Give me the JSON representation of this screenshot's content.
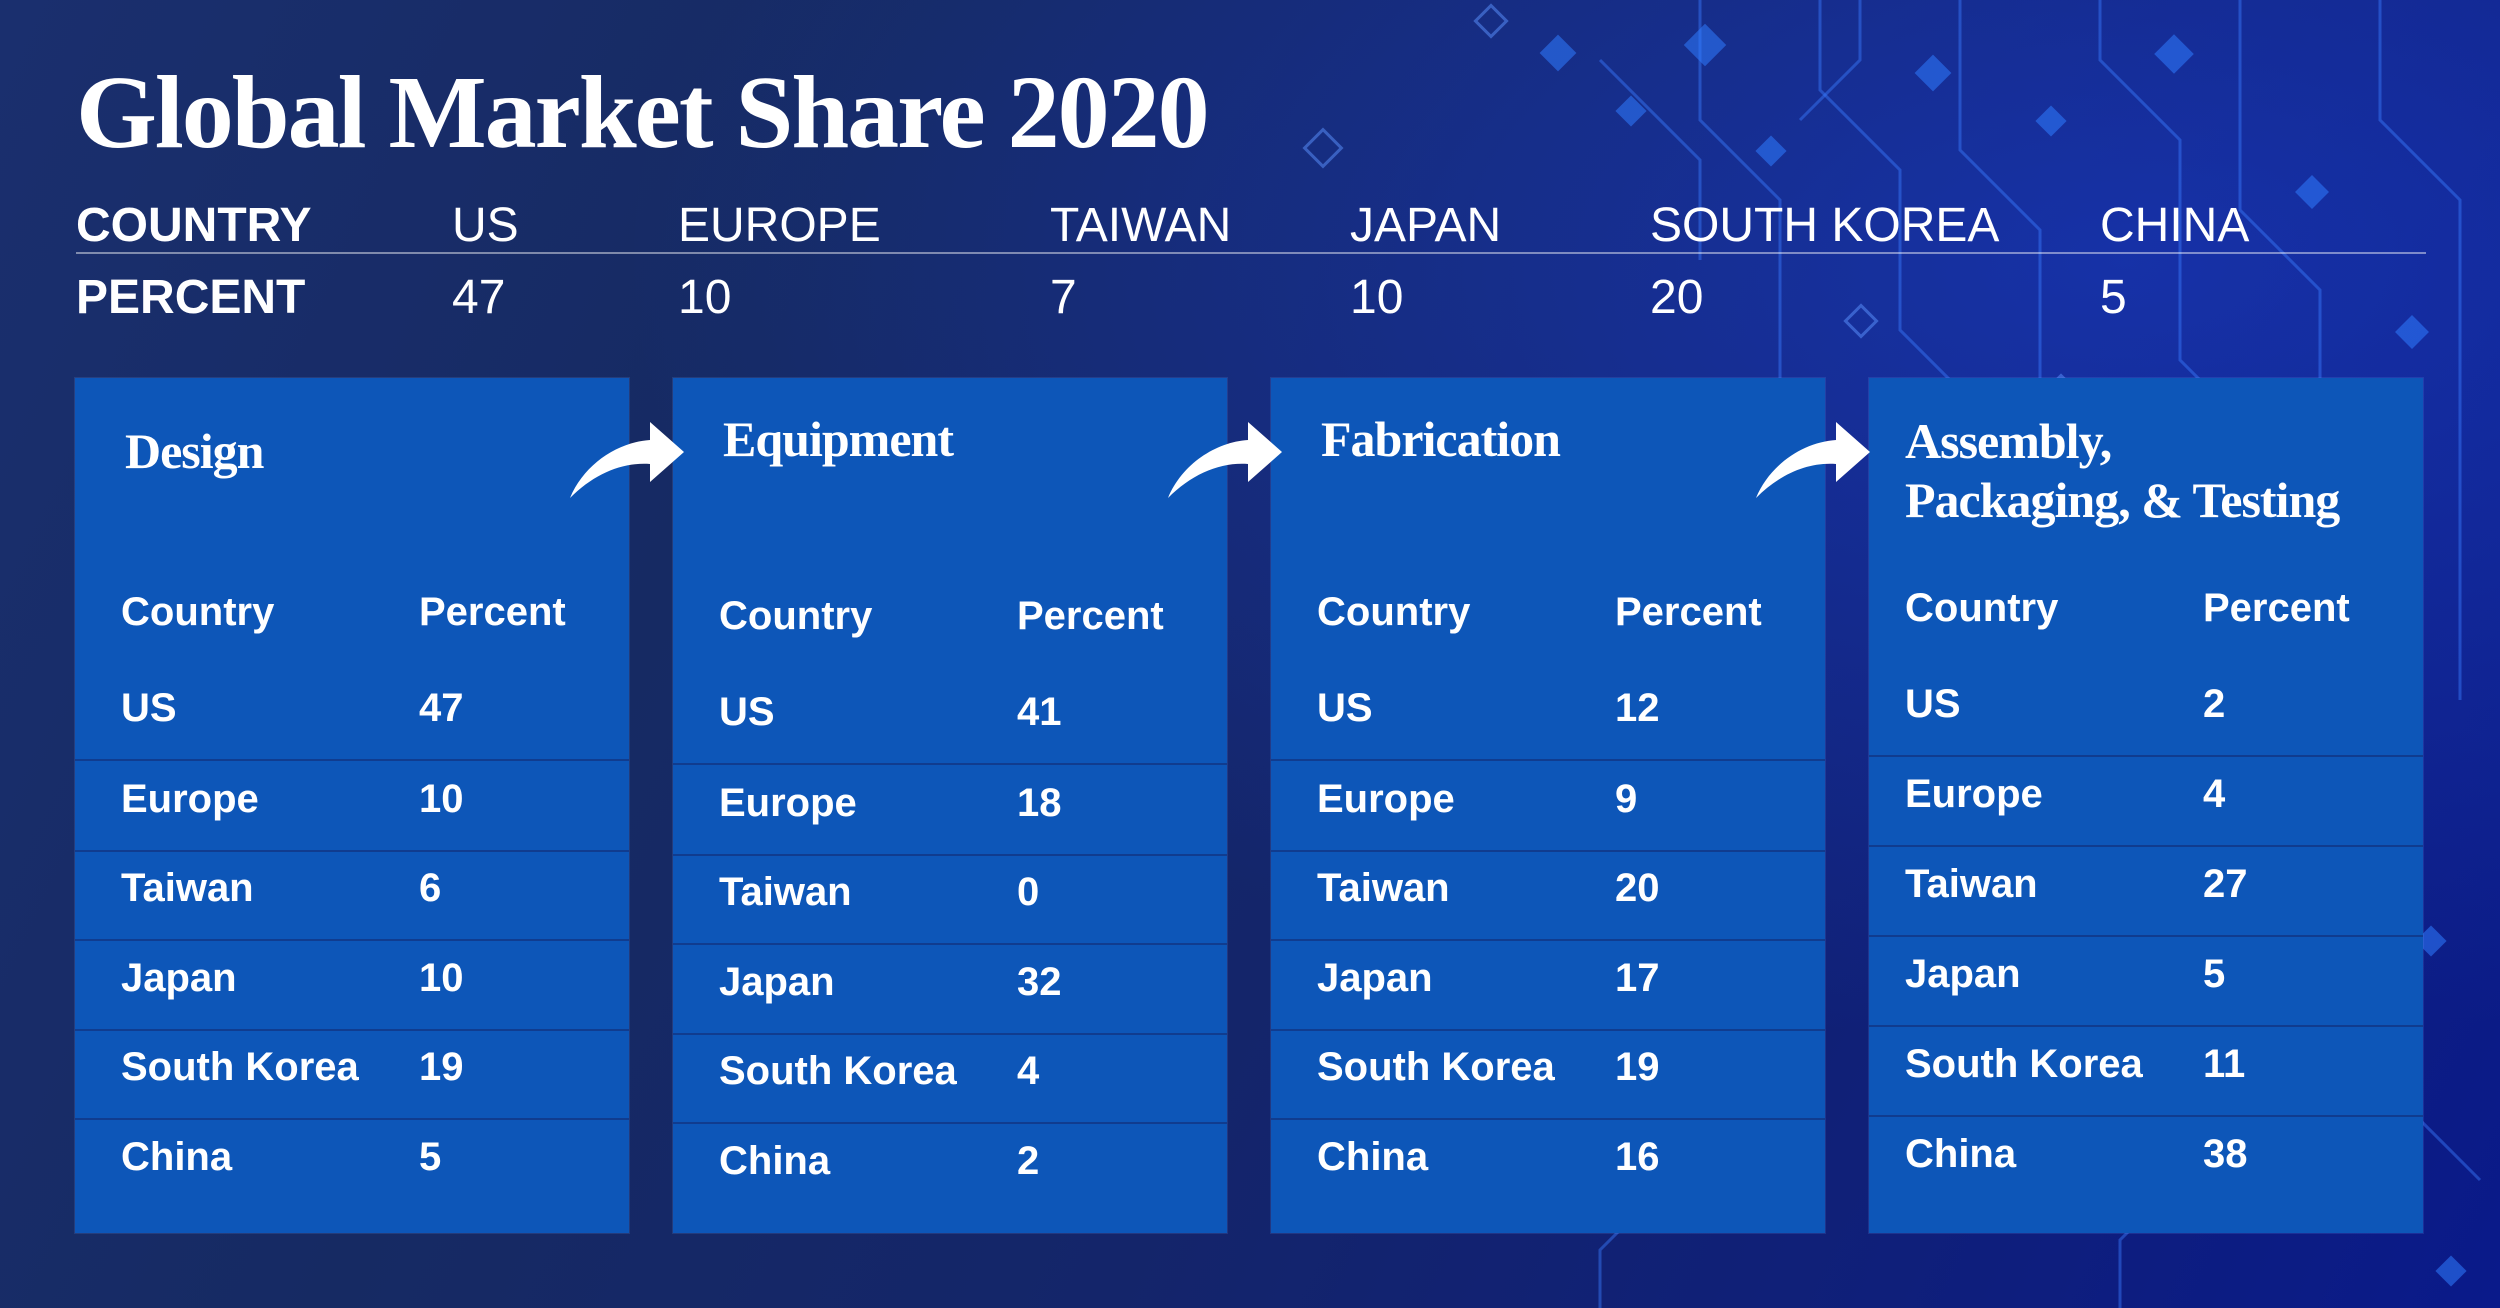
{
  "title": "Global Market Share 2020",
  "summary": {
    "country_label": "COUNTRY",
    "percent_label": "PERCENT",
    "countries": [
      "US",
      "EUROPE",
      "TAIWAN",
      "JAPAN",
      "SOUTH KOREA",
      "CHINA"
    ],
    "percents": [
      "47",
      "10",
      "7",
      "10",
      "20",
      "5"
    ]
  },
  "chart_data": [
    {
      "type": "table",
      "title": "Design",
      "columns": [
        "Country",
        "Percent"
      ],
      "rows": [
        [
          "US",
          47
        ],
        [
          "Europe",
          10
        ],
        [
          "Taiwan",
          6
        ],
        [
          "Japan",
          10
        ],
        [
          "South Korea",
          19
        ],
        [
          "China",
          5
        ]
      ]
    },
    {
      "type": "table",
      "title": "Equipment",
      "columns": [
        "Country",
        "Percent"
      ],
      "rows": [
        [
          "US",
          41
        ],
        [
          "Europe",
          18
        ],
        [
          "Taiwan",
          0
        ],
        [
          "Japan",
          32
        ],
        [
          "South Korea",
          4
        ],
        [
          "China",
          2
        ]
      ]
    },
    {
      "type": "table",
      "title": "Fabrication",
      "columns": [
        "Country",
        "Percent"
      ],
      "rows": [
        [
          "US",
          12
        ],
        [
          "Europe",
          9
        ],
        [
          "Taiwan",
          20
        ],
        [
          "Japan",
          17
        ],
        [
          "South Korea",
          19
        ],
        [
          "China",
          16
        ]
      ]
    },
    {
      "type": "table",
      "title": "Assembly, Packaging, & Testing",
      "title_lines": [
        "Assembly,",
        "Packaging, & Testing"
      ],
      "columns": [
        "Country",
        "Percent"
      ],
      "rows": [
        [
          "US",
          2
        ],
        [
          "Europe",
          4
        ],
        [
          "Taiwan",
          27
        ],
        [
          "Japan",
          5
        ],
        [
          "South Korea",
          11
        ],
        [
          "China",
          38
        ]
      ]
    }
  ],
  "colors": {
    "panel": "#0d56b8",
    "background": "#14256a",
    "text": "#ffffff",
    "accent": "#2f7bff"
  },
  "icons": {
    "arrow": "curved-arrow-icon"
  }
}
